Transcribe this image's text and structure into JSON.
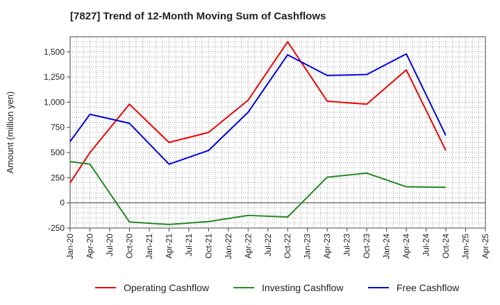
{
  "chart_data": {
    "type": "line",
    "title": "[7827]  Trend of 12-Month Moving Sum of Cashflows",
    "xlabel": "",
    "ylabel": "Amount (million yen)",
    "ylim": [
      -250,
      1650
    ],
    "yticks": [
      -250,
      0,
      250,
      500,
      750,
      1000,
      1250,
      1500
    ],
    "ytick_labels": [
      "-250",
      "0",
      "250",
      "500",
      "750",
      "1,000",
      "1,250",
      "1,500"
    ],
    "categories": [
      "Jan-20",
      "Apr-20",
      "Jul-20",
      "Oct-20",
      "Jan-21",
      "Apr-21",
      "Jul-21",
      "Oct-21",
      "Jan-22",
      "Apr-22",
      "Jul-22",
      "Oct-22",
      "Jan-23",
      "Apr-23",
      "Jul-23",
      "Oct-23",
      "Jan-24",
      "Apr-24",
      "Jul-24",
      "Oct-24",
      "Jan-25",
      "Apr-25"
    ],
    "grid": true,
    "legend_position": "bottom",
    "series": [
      {
        "name": "Operating Cashflow",
        "color": "#ee0000",
        "values": [
          200,
          500,
          null,
          980,
          null,
          600,
          null,
          700,
          null,
          1020,
          null,
          1600,
          null,
          1010,
          null,
          980,
          null,
          1320,
          null,
          520,
          null,
          null
        ]
      },
      {
        "name": "Investing Cashflow",
        "color": "#228822",
        "values": [
          410,
          385,
          null,
          -190,
          null,
          -215,
          null,
          -185,
          null,
          -125,
          null,
          -140,
          null,
          255,
          null,
          295,
          null,
          160,
          null,
          155,
          null,
          null
        ]
      },
      {
        "name": "Free Cashflow",
        "color": "#0000dd",
        "values": [
          610,
          880,
          null,
          790,
          null,
          385,
          null,
          520,
          null,
          900,
          null,
          1470,
          null,
          1265,
          null,
          1275,
          null,
          1480,
          null,
          670,
          null,
          null
        ]
      }
    ]
  }
}
